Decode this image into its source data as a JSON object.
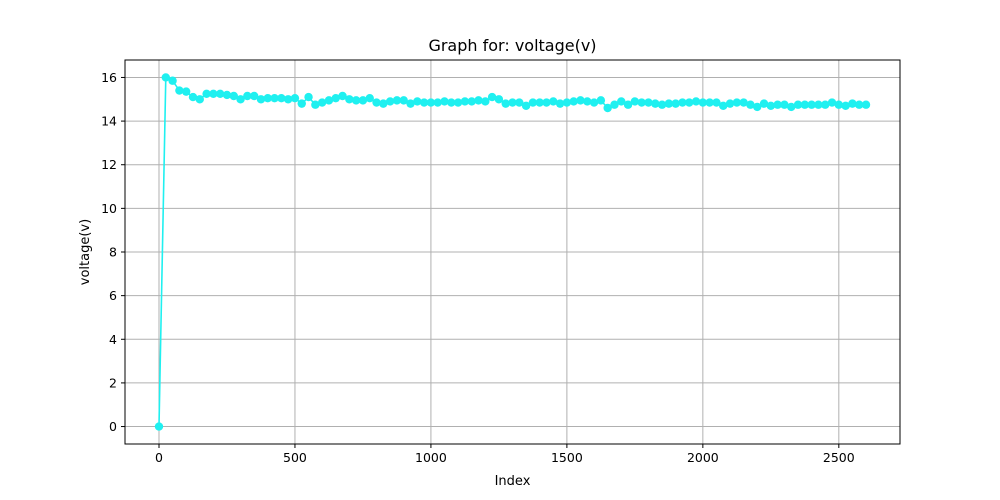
{
  "chart_data": {
    "type": "line",
    "title": "Graph for: voltage(v)",
    "xlabel": "Index",
    "ylabel": "voltage(v)",
    "xlim": [
      -125,
      2725
    ],
    "ylim": [
      -0.8,
      16.8
    ],
    "xticks": [
      0,
      500,
      1000,
      1500,
      2000,
      2500
    ],
    "yticks": [
      0,
      2,
      4,
      6,
      8,
      10,
      12,
      14,
      16
    ],
    "grid": true,
    "legend": "none",
    "color": "#1ff0f0",
    "series": [
      {
        "x": [
          0,
          25,
          50,
          75,
          100,
          125,
          150,
          175,
          200,
          225,
          250,
          275,
          300,
          325,
          350,
          375,
          400,
          425,
          450,
          475,
          500,
          525,
          550,
          575,
          600,
          625,
          650,
          675,
          700,
          725,
          750,
          775,
          800,
          825,
          850,
          875,
          900,
          925,
          950,
          975,
          1000,
          1025,
          1050,
          1075,
          1100,
          1125,
          1150,
          1175,
          1200,
          1225,
          1250,
          1275,
          1300,
          1325,
          1350,
          1375,
          1400,
          1425,
          1450,
          1475,
          1500,
          1525,
          1550,
          1575,
          1600,
          1625,
          1650,
          1675,
          1700,
          1725,
          1750,
          1775,
          1800,
          1825,
          1850,
          1875,
          1900,
          1925,
          1950,
          1975,
          2000,
          2025,
          2050,
          2075,
          2100,
          2125,
          2150,
          2175,
          2200,
          2225,
          2250,
          2275,
          2300,
          2325,
          2350,
          2375,
          2400,
          2425,
          2450,
          2475,
          2500,
          2525,
          2550,
          2575,
          2600
        ],
        "values": [
          0.0,
          16.0,
          15.85,
          15.4,
          15.35,
          15.1,
          15.0,
          15.25,
          15.25,
          15.25,
          15.2,
          15.15,
          15.0,
          15.15,
          15.15,
          15.0,
          15.05,
          15.05,
          15.05,
          15.0,
          15.05,
          14.8,
          15.1,
          14.75,
          14.85,
          14.95,
          15.05,
          15.15,
          15.0,
          14.95,
          14.95,
          15.05,
          14.85,
          14.8,
          14.9,
          14.95,
          14.95,
          14.8,
          14.9,
          14.85,
          14.85,
          14.85,
          14.9,
          14.85,
          14.85,
          14.9,
          14.9,
          14.95,
          14.9,
          15.1,
          15.0,
          14.8,
          14.85,
          14.85,
          14.7,
          14.85,
          14.85,
          14.85,
          14.9,
          14.8,
          14.85,
          14.9,
          14.95,
          14.9,
          14.85,
          14.95,
          14.6,
          14.75,
          14.9,
          14.75,
          14.9,
          14.85,
          14.85,
          14.8,
          14.75,
          14.8,
          14.8,
          14.85,
          14.85,
          14.9,
          14.85,
          14.85,
          14.85,
          14.7,
          14.8,
          14.85,
          14.85,
          14.75,
          14.65,
          14.8,
          14.7,
          14.75,
          14.75,
          14.65,
          14.75,
          14.75,
          14.75,
          14.75,
          14.75,
          14.85,
          14.75,
          14.7,
          14.8,
          14.75,
          14.75
        ]
      }
    ]
  }
}
